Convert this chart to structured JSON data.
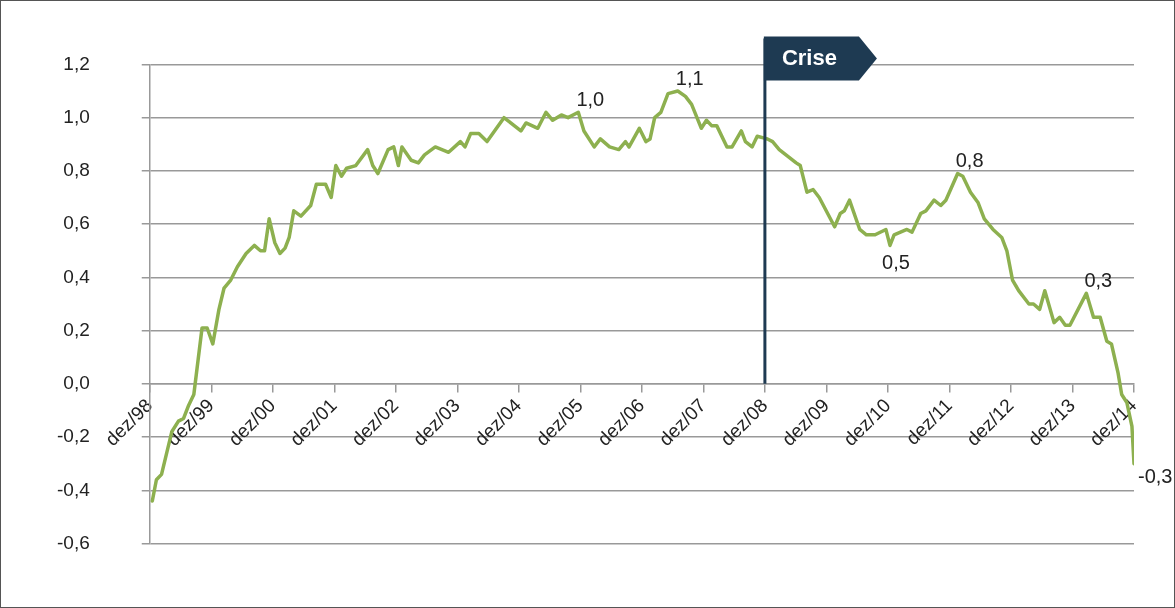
{
  "chart_data": {
    "type": "line",
    "x": [
      "1998-12-16",
      "1999-01-10",
      "1999-02-10",
      "1999-03-10",
      "1999-04-10",
      "1999-05-19",
      "1999-06-19",
      "1999-07-19",
      "1999-08-19",
      "1999-10-07",
      "1999-11-07",
      "1999-12-10",
      "2000-01-16",
      "2000-02-16",
      "2000-03-25",
      "2000-05-04",
      "2000-06-25",
      "2000-08-13",
      "2000-09-19",
      "2000-10-13",
      "2000-11-10",
      "2000-12-13",
      "2001-01-13",
      "2001-02-13",
      "2001-03-07",
      "2001-04-04",
      "2001-05-16",
      "2001-07-13",
      "2001-08-16",
      "2001-10-10",
      "2001-11-13",
      "2001-12-10",
      "2002-01-13",
      "2002-02-13",
      "2002-04-07",
      "2002-06-16",
      "2002-07-16",
      "2002-08-16",
      "2002-10-16",
      "2002-11-19",
      "2002-12-16",
      "2003-01-07",
      "2003-03-01",
      "2003-04-13",
      "2003-05-19",
      "2003-07-22",
      "2003-10-10",
      "2003-12-19",
      "2004-01-16",
      "2004-02-19",
      "2004-04-07",
      "2004-05-25",
      "2004-09-04",
      "2004-12-13",
      "2005-01-13",
      "2005-03-22",
      "2005-05-10",
      "2005-06-19",
      "2005-08-10",
      "2005-09-19",
      "2005-11-19",
      "2005-12-22",
      "2006-02-22",
      "2006-03-28",
      "2006-05-22",
      "2006-07-16",
      "2006-08-25",
      "2006-09-16",
      "2006-11-16",
      "2006-12-25",
      "2007-01-19",
      "2007-02-16",
      "2007-03-22",
      "2007-05-04",
      "2007-07-01",
      "2007-08-16",
      "2007-09-22",
      "2007-11-19",
      "2007-12-19",
      "2008-01-19",
      "2008-02-19",
      "2008-04-19",
      "2008-05-19",
      "2008-07-13",
      "2008-08-07",
      "2008-09-16",
      "2008-10-16",
      "2008-12-16",
      "2009-01-16",
      "2009-02-25",
      "2009-06-04",
      "2009-06-28",
      "2009-08-07",
      "2009-09-13",
      "2009-10-19",
      "2010-01-19",
      "2010-02-22",
      "2010-03-16",
      "2010-04-16",
      "2010-06-16",
      "2010-07-25",
      "2010-09-16",
      "2010-11-19",
      "2010-12-13",
      "2011-01-07",
      "2011-03-22",
      "2011-04-22",
      "2011-06-13",
      "2011-07-13",
      "2011-09-01",
      "2011-10-10",
      "2011-11-10",
      "2012-01-19",
      "2012-02-19",
      "2012-04-04",
      "2012-05-19",
      "2012-06-25",
      "2012-08-16",
      "2012-10-07",
      "2012-11-07",
      "2012-12-10",
      "2013-01-16",
      "2013-03-16",
      "2013-04-13",
      "2013-05-19",
      "2013-06-19",
      "2013-08-13",
      "2013-09-16",
      "2013-10-19",
      "2013-11-16",
      "2014-02-22",
      "2014-04-04",
      "2014-05-13",
      "2014-06-22",
      "2014-07-19",
      "2014-08-28",
      "2014-09-19",
      "2014-10-19",
      "2014-11-19",
      "2014-12-01"
    ],
    "series": [
      {
        "color": "#8db04f",
        "values": [
          -0.44,
          -0.36,
          -0.34,
          -0.26,
          -0.18,
          -0.14,
          -0.13,
          -0.08,
          -0.04,
          0.21,
          0.21,
          0.15,
          0.28,
          0.36,
          0.39,
          0.44,
          0.49,
          0.52,
          0.5,
          0.5,
          0.62,
          0.53,
          0.49,
          0.51,
          0.55,
          0.65,
          0.63,
          0.67,
          0.75,
          0.75,
          0.7,
          0.82,
          0.78,
          0.81,
          0.82,
          0.88,
          0.82,
          0.79,
          0.88,
          0.89,
          0.82,
          0.89,
          0.84,
          0.83,
          0.86,
          0.89,
          0.87,
          0.91,
          0.89,
          0.94,
          0.94,
          0.91,
          1.0,
          0.95,
          0.98,
          0.96,
          1.02,
          0.99,
          1.01,
          1.0,
          1.02,
          0.95,
          0.89,
          0.92,
          0.89,
          0.88,
          0.91,
          0.89,
          0.96,
          0.91,
          0.92,
          1.0,
          1.02,
          1.09,
          1.1,
          1.08,
          1.05,
          0.96,
          0.99,
          0.97,
          0.97,
          0.89,
          0.89,
          0.95,
          0.91,
          0.89,
          0.93,
          0.92,
          0.91,
          0.88,
          0.83,
          0.82,
          0.72,
          0.73,
          0.7,
          0.59,
          0.64,
          0.65,
          0.69,
          0.58,
          0.56,
          0.56,
          0.58,
          0.52,
          0.56,
          0.58,
          0.57,
          0.64,
          0.65,
          0.69,
          0.67,
          0.69,
          0.79,
          0.78,
          0.72,
          0.68,
          0.62,
          0.58,
          0.55,
          0.5,
          0.39,
          0.35,
          0.3,
          0.3,
          0.28,
          0.35,
          0.23,
          0.25,
          0.22,
          0.22,
          0.34,
          0.25,
          0.25,
          0.16,
          0.15,
          0.04,
          -0.04,
          -0.07,
          -0.16,
          -0.3
        ],
        "value_labels": [
          null,
          null,
          null,
          null,
          null,
          null,
          null,
          null,
          null,
          null,
          null,
          null,
          null,
          null,
          null,
          null,
          null,
          null,
          null,
          null,
          null,
          null,
          null,
          null,
          null,
          null,
          null,
          null,
          null,
          null,
          null,
          null,
          null,
          null,
          null,
          null,
          null,
          null,
          null,
          null,
          null,
          null,
          null,
          null,
          null,
          null,
          null,
          null,
          null,
          null,
          null,
          null,
          null,
          null,
          null,
          null,
          null,
          null,
          null,
          null,
          "1,0",
          null,
          null,
          null,
          null,
          null,
          null,
          null,
          null,
          null,
          null,
          null,
          null,
          null,
          "1,1",
          null,
          null,
          null,
          null,
          null,
          null,
          null,
          null,
          null,
          null,
          null,
          null,
          null,
          null,
          null,
          null,
          null,
          null,
          null,
          null,
          null,
          null,
          null,
          null,
          null,
          null,
          null,
          null,
          "0,5",
          null,
          null,
          null,
          null,
          null,
          null,
          null,
          null,
          "0,8",
          null,
          null,
          null,
          null,
          null,
          null,
          null,
          null,
          null,
          null,
          null,
          null,
          null,
          null,
          null,
          null,
          null,
          "0,3",
          null,
          null,
          null,
          null,
          null,
          null,
          null,
          null,
          "-0,3"
        ]
      }
    ],
    "xlim": [
      "1998-12",
      "2014-12"
    ],
    "xticks": [
      {
        "value": "1998-12",
        "label": "dez/98"
      },
      {
        "value": "1999-12",
        "label": "dez/99"
      },
      {
        "value": "2000-12",
        "label": "dez/00"
      },
      {
        "value": "2001-12",
        "label": "dez/01"
      },
      {
        "value": "2002-12",
        "label": "dez/02"
      },
      {
        "value": "2003-12",
        "label": "dez/03"
      },
      {
        "value": "2004-12",
        "label": "dez/04"
      },
      {
        "value": "2005-12",
        "label": "dez/05"
      },
      {
        "value": "2006-12",
        "label": "dez/06"
      },
      {
        "value": "2007-12",
        "label": "dez/07"
      },
      {
        "value": "2008-12",
        "label": "dez/08"
      },
      {
        "value": "2009-12",
        "label": "dez/09"
      },
      {
        "value": "2010-12",
        "label": "dez/10"
      },
      {
        "value": "2011-12",
        "label": "dez/11"
      },
      {
        "value": "2012-12",
        "label": "dez/12"
      },
      {
        "value": "2013-12",
        "label": "dez/13"
      },
      {
        "value": "2014-12",
        "label": "dez/14"
      }
    ],
    "ylim": [
      -0.6,
      1.2
    ],
    "yticks": [
      {
        "value": -0.6,
        "label": "-0,6"
      },
      {
        "value": -0.4,
        "label": "-0,4"
      },
      {
        "value": -0.2,
        "label": "-0,2"
      },
      {
        "value": 0,
        "label": "0,0"
      },
      {
        "value": 0.2,
        "label": "0,2"
      },
      {
        "value": 0.4,
        "label": "0,4"
      },
      {
        "value": 0.6,
        "label": "0,6"
      },
      {
        "value": 0.8,
        "label": "0,8"
      },
      {
        "value": 1.0,
        "label": "1,0"
      },
      {
        "value": 1.2,
        "label": "1,2"
      }
    ],
    "grid": "y",
    "legend": false,
    "marker": "none",
    "line_style": "solid",
    "ref_lines": [
      {
        "axis": "x",
        "value": "2008-12",
        "label": "Crise",
        "color": "#1e3a52"
      }
    ]
  }
}
